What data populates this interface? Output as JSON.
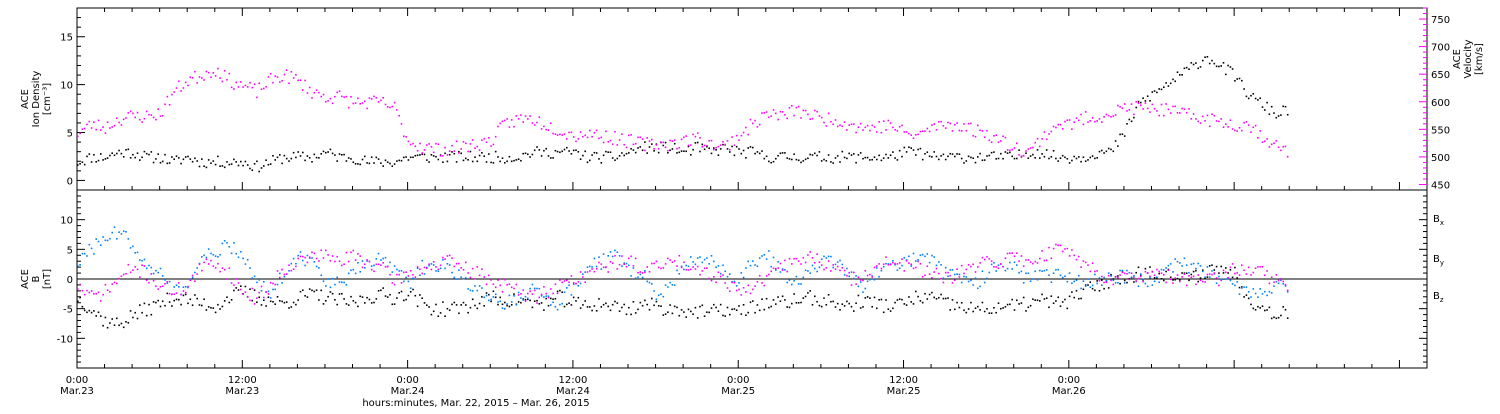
{
  "chart_data": [
    {
      "type": "scatter",
      "ylabel_lines": [
        "ACE",
        "Ion Density",
        "[cm⁻³]"
      ],
      "ylim": [
        -1,
        18
      ],
      "yticks": [
        0,
        5,
        10,
        15
      ],
      "y2label_lines": [
        "ACE",
        "Velocity",
        "[km/s]"
      ],
      "y2lim": [
        440,
        770
      ],
      "y2ticks": [
        450,
        500,
        550,
        600,
        650,
        700,
        750
      ],
      "xlim_hours": [
        0,
        98
      ],
      "series": [
        {
          "color": "#000000",
          "x": [
            0,
            1,
            2,
            3,
            4,
            5,
            6,
            7,
            8,
            9,
            10,
            11,
            12,
            13,
            14,
            15,
            16,
            17,
            18,
            19,
            20,
            21,
            22,
            23,
            24,
            25,
            26,
            27,
            28,
            29,
            30,
            31,
            32,
            33,
            34,
            35,
            36,
            37,
            38,
            39,
            40,
            41,
            42,
            43,
            44,
            45,
            46,
            47,
            48,
            49,
            50,
            51,
            52,
            53,
            54,
            55,
            56,
            57,
            58,
            59,
            60,
            61,
            62,
            63,
            64,
            65,
            66,
            67,
            68,
            69,
            70,
            71,
            72,
            73,
            74,
            75,
            76,
            77,
            78,
            79,
            80,
            81,
            82,
            83,
            84,
            85,
            86,
            87,
            88
          ],
          "y": [
            2,
            2.5,
            2.5,
            3,
            3,
            2.5,
            2.5,
            2,
            2.5,
            2,
            2,
            2,
            2,
            1.5,
            2,
            2.5,
            2.5,
            2.5,
            3,
            2.5,
            2.5,
            2,
            2,
            2,
            2.5,
            2.5,
            2.5,
            2.5,
            2.5,
            2.5,
            2.5,
            2.5,
            2.5,
            3,
            3,
            3,
            3,
            2.5,
            2.5,
            2.5,
            3,
            3.5,
            3.5,
            3.5,
            3,
            3.5,
            3,
            3.5,
            3,
            3,
            2.5,
            2.5,
            2.5,
            2.5,
            2.5,
            2.5,
            2.5,
            2.5,
            2.5,
            2.5,
            3,
            3,
            2.5,
            2.5,
            2.5,
            2.5,
            2.5,
            2.5,
            2.5,
            3,
            3,
            2.5,
            2.5,
            2.5,
            3,
            3,
            5,
            8,
            9,
            10,
            11,
            12,
            13,
            12,
            11,
            9,
            8,
            7,
            7.5
          ]
        },
        {
          "color": "#ff00ff",
          "x": [
            0,
            1,
            2,
            3,
            4,
            5,
            6,
            7,
            8,
            9,
            10,
            11,
            12,
            13,
            14,
            15,
            16,
            17,
            18,
            19,
            20,
            21,
            22,
            23,
            24,
            25,
            26,
            27,
            28,
            29,
            30,
            31,
            32,
            33,
            34,
            35,
            36,
            37,
            38,
            39,
            40,
            41,
            42,
            43,
            44,
            45,
            46,
            47,
            48,
            49,
            50,
            51,
            52,
            53,
            54,
            55,
            56,
            57,
            58,
            59,
            60,
            61,
            62,
            63,
            64,
            65,
            66,
            67,
            68,
            69,
            70,
            71,
            72,
            73,
            74,
            75,
            76,
            77,
            78,
            79,
            80,
            81,
            82,
            83,
            84,
            85,
            86,
            87,
            88
          ],
          "y2": [
            545,
            560,
            555,
            570,
            575,
            575,
            580,
            620,
            640,
            650,
            660,
            640,
            630,
            620,
            640,
            650,
            640,
            620,
            610,
            610,
            600,
            600,
            600,
            590,
            530,
            520,
            515,
            515,
            520,
            525,
            530,
            560,
            570,
            570,
            560,
            550,
            540,
            545,
            540,
            535,
            530,
            525,
            525,
            525,
            530,
            535,
            525,
            520,
            540,
            560,
            580,
            575,
            585,
            580,
            570,
            570,
            560,
            555,
            555,
            560,
            545,
            540,
            555,
            560,
            560,
            550,
            545,
            530,
            520,
            510,
            535,
            560,
            560,
            570,
            575,
            580,
            590,
            590,
            590,
            585,
            580,
            575,
            570,
            565,
            560,
            560,
            540,
            520,
            510
          ]
        }
      ]
    },
    {
      "type": "scatter",
      "ylabel_lines": [
        "ACE",
        "B",
        "[nT]"
      ],
      "ylim": [
        -15,
        15
      ],
      "yticks": [
        -10,
        -5,
        0,
        5,
        10
      ],
      "xlim_hours": [
        0,
        98
      ],
      "series": [
        {
          "name": "B",
          "sub": "x",
          "color": "#000000",
          "x": [
            0,
            1,
            2,
            3,
            4,
            5,
            6,
            7,
            8,
            9,
            10,
            11,
            12,
            13,
            14,
            15,
            16,
            17,
            18,
            19,
            20,
            21,
            22,
            23,
            24,
            25,
            26,
            27,
            28,
            29,
            30,
            31,
            32,
            33,
            34,
            35,
            36,
            37,
            38,
            39,
            40,
            41,
            42,
            43,
            44,
            45,
            46,
            47,
            48,
            49,
            50,
            51,
            52,
            53,
            54,
            55,
            56,
            57,
            58,
            59,
            60,
            61,
            62,
            63,
            64,
            65,
            66,
            67,
            68,
            69,
            70,
            71,
            72,
            73,
            74,
            75,
            76,
            77,
            78,
            79,
            80,
            81,
            82,
            83,
            84,
            85,
            86,
            87,
            88
          ],
          "y": [
            -3,
            -5,
            -7,
            -7.5,
            -6,
            -5,
            -4,
            -3,
            -3.5,
            -4,
            -4.5,
            -3,
            -2,
            -3,
            -3.5,
            -4,
            -3,
            -2.5,
            -3,
            -3.5,
            -4,
            -3,
            -2.5,
            -3,
            -2,
            -4,
            -5,
            -5,
            -4.5,
            -4,
            -3,
            -3.5,
            -3.5,
            -4,
            -4,
            -3,
            -4,
            -4.5,
            -4,
            -4.5,
            -5,
            -4,
            -4.5,
            -5,
            -5,
            -5.5,
            -5.5,
            -5,
            -5.5,
            -4.5,
            -4,
            -4,
            -3.5,
            -3,
            -3.5,
            -4,
            -4.5,
            -3.5,
            -4,
            -4.5,
            -4,
            -3,
            -3,
            -4,
            -4.5,
            -5,
            -5,
            -4.5,
            -4.5,
            -4,
            -3.5,
            -4,
            -3.5,
            -2,
            -1,
            0,
            0.5,
            1,
            1.5,
            1,
            0,
            0.5,
            1.5,
            2,
            1,
            -3,
            -5,
            -5.5,
            -5.5
          ]
        },
        {
          "name": "B",
          "sub": "y",
          "color": "#0080ff",
          "x": [
            0,
            1,
            2,
            3,
            4,
            5,
            6,
            7,
            8,
            9,
            10,
            11,
            12,
            13,
            14,
            15,
            16,
            17,
            18,
            19,
            20,
            21,
            22,
            23,
            24,
            25,
            26,
            27,
            28,
            29,
            30,
            31,
            32,
            33,
            34,
            35,
            36,
            37,
            38,
            39,
            40,
            41,
            42,
            43,
            44,
            45,
            46,
            47,
            48,
            49,
            50,
            51,
            52,
            53,
            54,
            55,
            56,
            57,
            58,
            59,
            60,
            61,
            62,
            63,
            64,
            65,
            66,
            67,
            68,
            69,
            70,
            71,
            72,
            73,
            74,
            75,
            76,
            77,
            78,
            79,
            80,
            81,
            82,
            83,
            84,
            85,
            86,
            87,
            88
          ],
          "y": [
            3,
            5,
            7,
            8,
            6,
            3,
            1,
            -2,
            -1,
            3,
            5,
            5.5,
            4,
            0,
            -2,
            1,
            4,
            3,
            0,
            -1,
            1,
            3,
            4,
            2,
            -1,
            2,
            2.5,
            2,
            0,
            -2,
            -3,
            -4,
            -3,
            -2,
            -3,
            -4,
            -1,
            2,
            3,
            4,
            2,
            1,
            -3,
            -1,
            2,
            4,
            3,
            1,
            0,
            3,
            4,
            2,
            -1,
            1,
            3,
            3,
            1,
            -1,
            1,
            2,
            3,
            4,
            4,
            1,
            0,
            -1,
            1,
            3,
            2,
            0,
            0.5,
            1,
            0,
            -0.5,
            0,
            0.5,
            0.5,
            0,
            0,
            1,
            3,
            2,
            1,
            0,
            -1,
            -2,
            -2,
            -1.5,
            -1
          ]
        },
        {
          "name": "B",
          "sub": "z",
          "color": "#ff00ff",
          "x": [
            0,
            1,
            2,
            3,
            4,
            5,
            6,
            7,
            8,
            9,
            10,
            11,
            12,
            13,
            14,
            15,
            16,
            17,
            18,
            19,
            20,
            21,
            22,
            23,
            24,
            25,
            26,
            27,
            28,
            29,
            30,
            31,
            32,
            33,
            34,
            35,
            36,
            37,
            38,
            39,
            40,
            41,
            42,
            43,
            44,
            45,
            46,
            47,
            48,
            49,
            50,
            51,
            52,
            53,
            54,
            55,
            56,
            57,
            58,
            59,
            60,
            61,
            62,
            63,
            64,
            65,
            66,
            67,
            68,
            69,
            70,
            71,
            72,
            73,
            74,
            75,
            76,
            77,
            78,
            79,
            80,
            81,
            82,
            83,
            84,
            85,
            86,
            87,
            88
          ],
          "y": [
            -1,
            -3,
            -2,
            0,
            2,
            1,
            -1,
            -2,
            -1,
            2,
            3,
            1,
            -2,
            -3,
            -1,
            2,
            3,
            4,
            4,
            3,
            4,
            3,
            2,
            0,
            1,
            2,
            2.5,
            3,
            2,
            1,
            0,
            -1,
            -2,
            -3,
            -2,
            -1,
            0,
            1,
            2,
            3,
            3,
            2,
            2,
            3,
            3,
            2,
            1,
            0,
            -2,
            -1,
            0,
            2,
            3,
            4,
            3,
            2,
            0,
            1,
            2,
            3,
            2.5,
            2,
            1,
            0,
            1,
            2,
            3,
            3,
            4,
            3,
            4,
            5,
            5,
            3,
            1,
            0.5,
            0,
            1,
            0.5,
            0.5,
            0,
            0,
            0,
            0,
            2,
            2,
            1,
            0,
            -1
          ]
        }
      ]
    }
  ],
  "xaxis": {
    "ticks": [
      {
        "hour": 0,
        "time": "0:00",
        "date": "Mar.23"
      },
      {
        "hour": 12,
        "time": "12:00",
        "date": "Mar.23"
      },
      {
        "hour": 24,
        "time": "0:00",
        "date": "Mar.24"
      },
      {
        "hour": 36,
        "time": "12:00",
        "date": "Mar.24"
      },
      {
        "hour": 48,
        "time": "0:00",
        "date": "Mar.25"
      },
      {
        "hour": 60,
        "time": "12:00",
        "date": "Mar.25"
      },
      {
        "hour": 72,
        "time": "0:00",
        "date": "Mar.26"
      }
    ],
    "title": "hours:minutes, Mar. 22, 2015 – Mar. 26, 2015"
  },
  "colors": {
    "black": "#000000",
    "magenta": "#ff00ff",
    "blue": "#0080ff"
  }
}
